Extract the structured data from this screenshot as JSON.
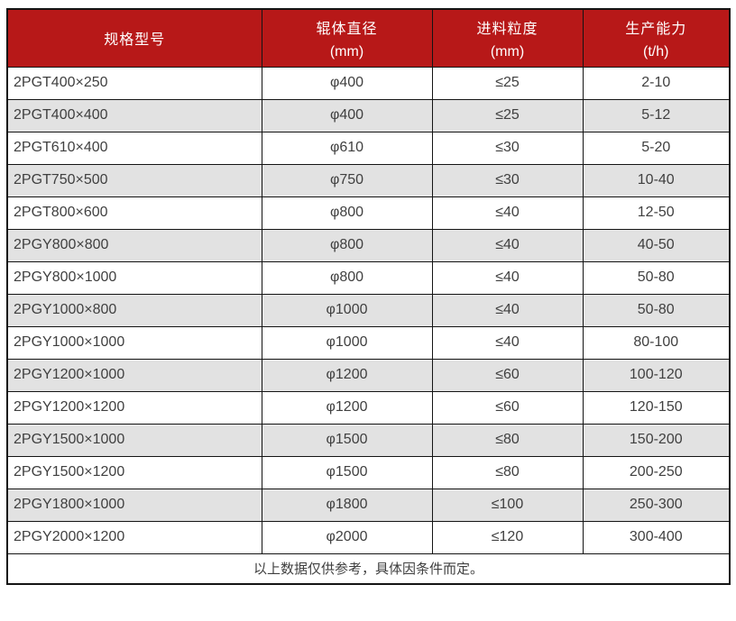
{
  "table": {
    "columns": [
      {
        "label": "规格型号",
        "unit": ""
      },
      {
        "label": "辊体直径",
        "unit": "(mm)"
      },
      {
        "label": "进料粒度",
        "unit": "(mm)"
      },
      {
        "label": "生产能力",
        "unit": "(t/h)"
      }
    ],
    "rows": [
      [
        "2PGT400×250",
        "φ400",
        "≤25",
        "2-10"
      ],
      [
        "2PGT400×400",
        "φ400",
        "≤25",
        "5-12"
      ],
      [
        "2PGT610×400",
        "φ610",
        "≤30",
        "5-20"
      ],
      [
        "2PGT750×500",
        "φ750",
        "≤30",
        "10-40"
      ],
      [
        "2PGT800×600",
        "φ800",
        "≤40",
        "12-50"
      ],
      [
        "2PGY800×800",
        "φ800",
        "≤40",
        "40-50"
      ],
      [
        "2PGY800×1000",
        "φ800",
        "≤40",
        "50-80"
      ],
      [
        "2PGY1000×800",
        "φ1000",
        "≤40",
        "50-80"
      ],
      [
        "2PGY1000×1000",
        "φ1000",
        "≤40",
        "80-100"
      ],
      [
        "2PGY1200×1000",
        "φ1200",
        "≤60",
        "100-120"
      ],
      [
        "2PGY1200×1200",
        "φ1200",
        "≤60",
        "120-150"
      ],
      [
        "2PGY1500×1000",
        "φ1500",
        "≤80",
        "150-200"
      ],
      [
        "2PGY1500×1200",
        "φ1500",
        "≤80",
        "200-250"
      ],
      [
        "2PGY1800×1000",
        "φ1800",
        "≤100",
        "250-300"
      ],
      [
        "2PGY2000×1200",
        "φ2000",
        "≤120",
        "300-400"
      ]
    ],
    "footnote": "以上数据仅供参考，具体因条件而定。",
    "colors": {
      "header_bg": "#b71818",
      "header_text": "#ffffff",
      "row_alt_bg": "#e2e2e2",
      "border": "#141414",
      "text": "#404040"
    }
  }
}
